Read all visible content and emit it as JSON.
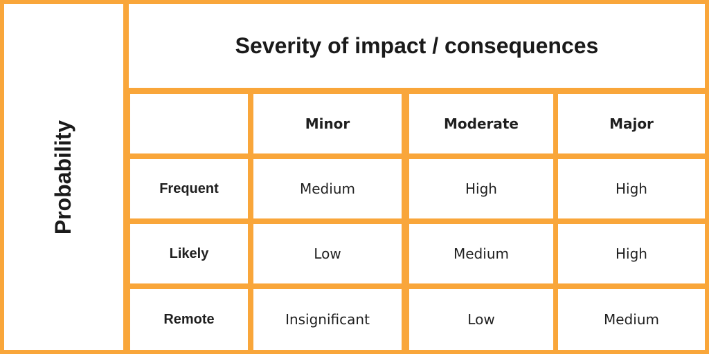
{
  "axis_label": "Probability",
  "title": "Severity of impact / consequences",
  "columns": [
    "Minor",
    "Moderate",
    "Major"
  ],
  "rows": [
    {
      "label": "Frequent",
      "values": [
        "Medium",
        "High",
        "High"
      ]
    },
    {
      "label": "Likely",
      "values": [
        "Low",
        "Medium",
        "High"
      ]
    },
    {
      "label": "Remote",
      "values": [
        "Insignificant",
        "Low",
        "Medium"
      ]
    }
  ],
  "colors": {
    "border": "#f9a63a",
    "text": "#1f1f1f",
    "background": "#ffffff"
  }
}
